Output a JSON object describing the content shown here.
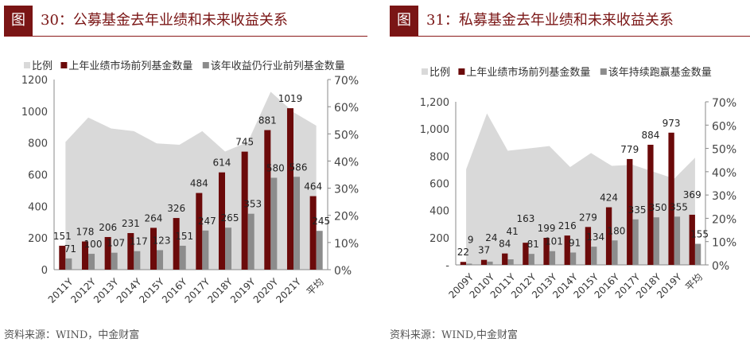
{
  "chart_data": [
    {
      "type": "bar",
      "figure_label": "图",
      "title": "30：公募基金去年业绩和未来收益关系",
      "source": "资料来源：WIND，中金财富",
      "categories": [
        "2011Y",
        "2012Y",
        "2013Y",
        "2014Y",
        "2015Y",
        "2016Y",
        "2017Y",
        "2018Y",
        "2019Y",
        "2020Y",
        "2021Y",
        "平均"
      ],
      "series": [
        {
          "name": "比例",
          "type": "area",
          "axis": "right",
          "color": "#d9d9d9",
          "values": [
            47,
            56,
            52,
            51,
            46.5,
            46,
            51,
            43.5,
            47,
            65.5,
            58,
            53
          ]
        },
        {
          "name": "上年业绩市场前列基金数量",
          "type": "bar",
          "axis": "left",
          "color": "#6b0a0a",
          "values": [
            151,
            178,
            206,
            231,
            264,
            326,
            484,
            614,
            745,
            881,
            1019,
            464
          ]
        },
        {
          "name": "该年收益仍行业前列基金数量",
          "type": "bar",
          "axis": "left",
          "color": "#8c8c8c",
          "values": [
            71,
            100,
            107,
            117,
            123,
            151,
            247,
            265,
            353,
            580,
            586,
            245
          ]
        }
      ],
      "ylim": [
        0,
        1200
      ],
      "yticks": [
        "0",
        "200",
        "400",
        "600",
        "800",
        "1000",
        "1200"
      ],
      "y2lim": [
        0,
        70
      ],
      "y2ticks": [
        "0%",
        "10%",
        "20%",
        "30%",
        "40%",
        "50%",
        "60%",
        "70%"
      ],
      "legend": "top"
    },
    {
      "type": "bar",
      "figure_label": "图",
      "title": "31：私募基金去年业绩和未来收益关系",
      "source": "资料来源：WIND,中金财富",
      "categories": [
        "2009Y",
        "2010Y",
        "2011Y",
        "2012Y",
        "2013Y",
        "2014Y",
        "2015Y",
        "2016Y",
        "2017Y",
        "2018Y",
        "2019Y",
        "平均"
      ],
      "series": [
        {
          "name": "比例",
          "type": "area",
          "axis": "right",
          "color": "#d9d9d9",
          "values": [
            41,
            65,
            49,
            50,
            51,
            42,
            48,
            42.5,
            43,
            40,
            37,
            46
          ]
        },
        {
          "name": "上年业绩市场前列基金数量",
          "type": "bar",
          "axis": "left",
          "color": "#6b0a0a",
          "values": [
            22,
            37,
            84,
            163,
            199,
            216,
            279,
            424,
            779,
            884,
            973,
            369
          ]
        },
        {
          "name": "该年持续跑赢基金数量",
          "type": "bar",
          "axis": "left",
          "color": "#8c8c8c",
          "values": [
            9,
            24,
            41,
            81,
            101,
            91,
            134,
            180,
            335,
            350,
            355,
            155
          ]
        }
      ],
      "ylim": [
        0,
        1200
      ],
      "yticks": [
        "-",
        "200",
        "400",
        "600",
        "800",
        "1,000",
        "1,200"
      ],
      "y2lim": [
        0,
        70
      ],
      "y2ticks": [
        "0%",
        "10%",
        "20%",
        "30%",
        "40%",
        "50%",
        "60%",
        "70%"
      ],
      "legend": "top"
    }
  ]
}
